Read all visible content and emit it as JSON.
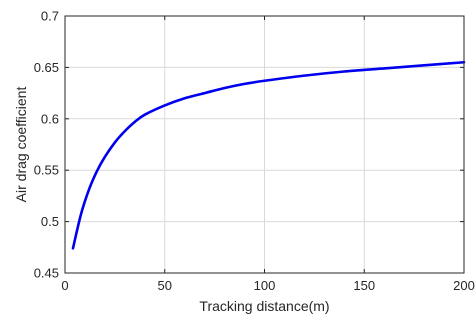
{
  "chart_data": {
    "type": "line",
    "title": "",
    "xlabel": "Tracking distance(m)",
    "ylabel": "Air drag coefficient",
    "xlim": [
      0,
      200
    ],
    "ylim": [
      0.45,
      0.7
    ],
    "xticks": [
      0,
      50,
      100,
      150,
      200
    ],
    "xtick_labels": [
      "0",
      "50",
      "100",
      "150",
      "200"
    ],
    "yticks": [
      0.45,
      0.5,
      0.55,
      0.6,
      0.65,
      0.7
    ],
    "ytick_labels": [
      "0.45",
      "0.5",
      "0.55",
      "0.6",
      "0.65",
      "0.7"
    ],
    "grid": true,
    "series": [
      {
        "color": "#0000ee",
        "x": [
          4,
          8,
          12,
          16,
          20,
          25,
          30,
          35,
          40,
          50,
          60,
          70,
          80,
          90,
          100,
          120,
          140,
          160,
          180,
          200
        ],
        "y": [
          0.474,
          0.507,
          0.531,
          0.549,
          0.563,
          0.577,
          0.588,
          0.597,
          0.604,
          0.613,
          0.62,
          0.625,
          0.63,
          0.634,
          0.637,
          0.642,
          0.646,
          0.649,
          0.652,
          0.655
        ]
      }
    ]
  }
}
